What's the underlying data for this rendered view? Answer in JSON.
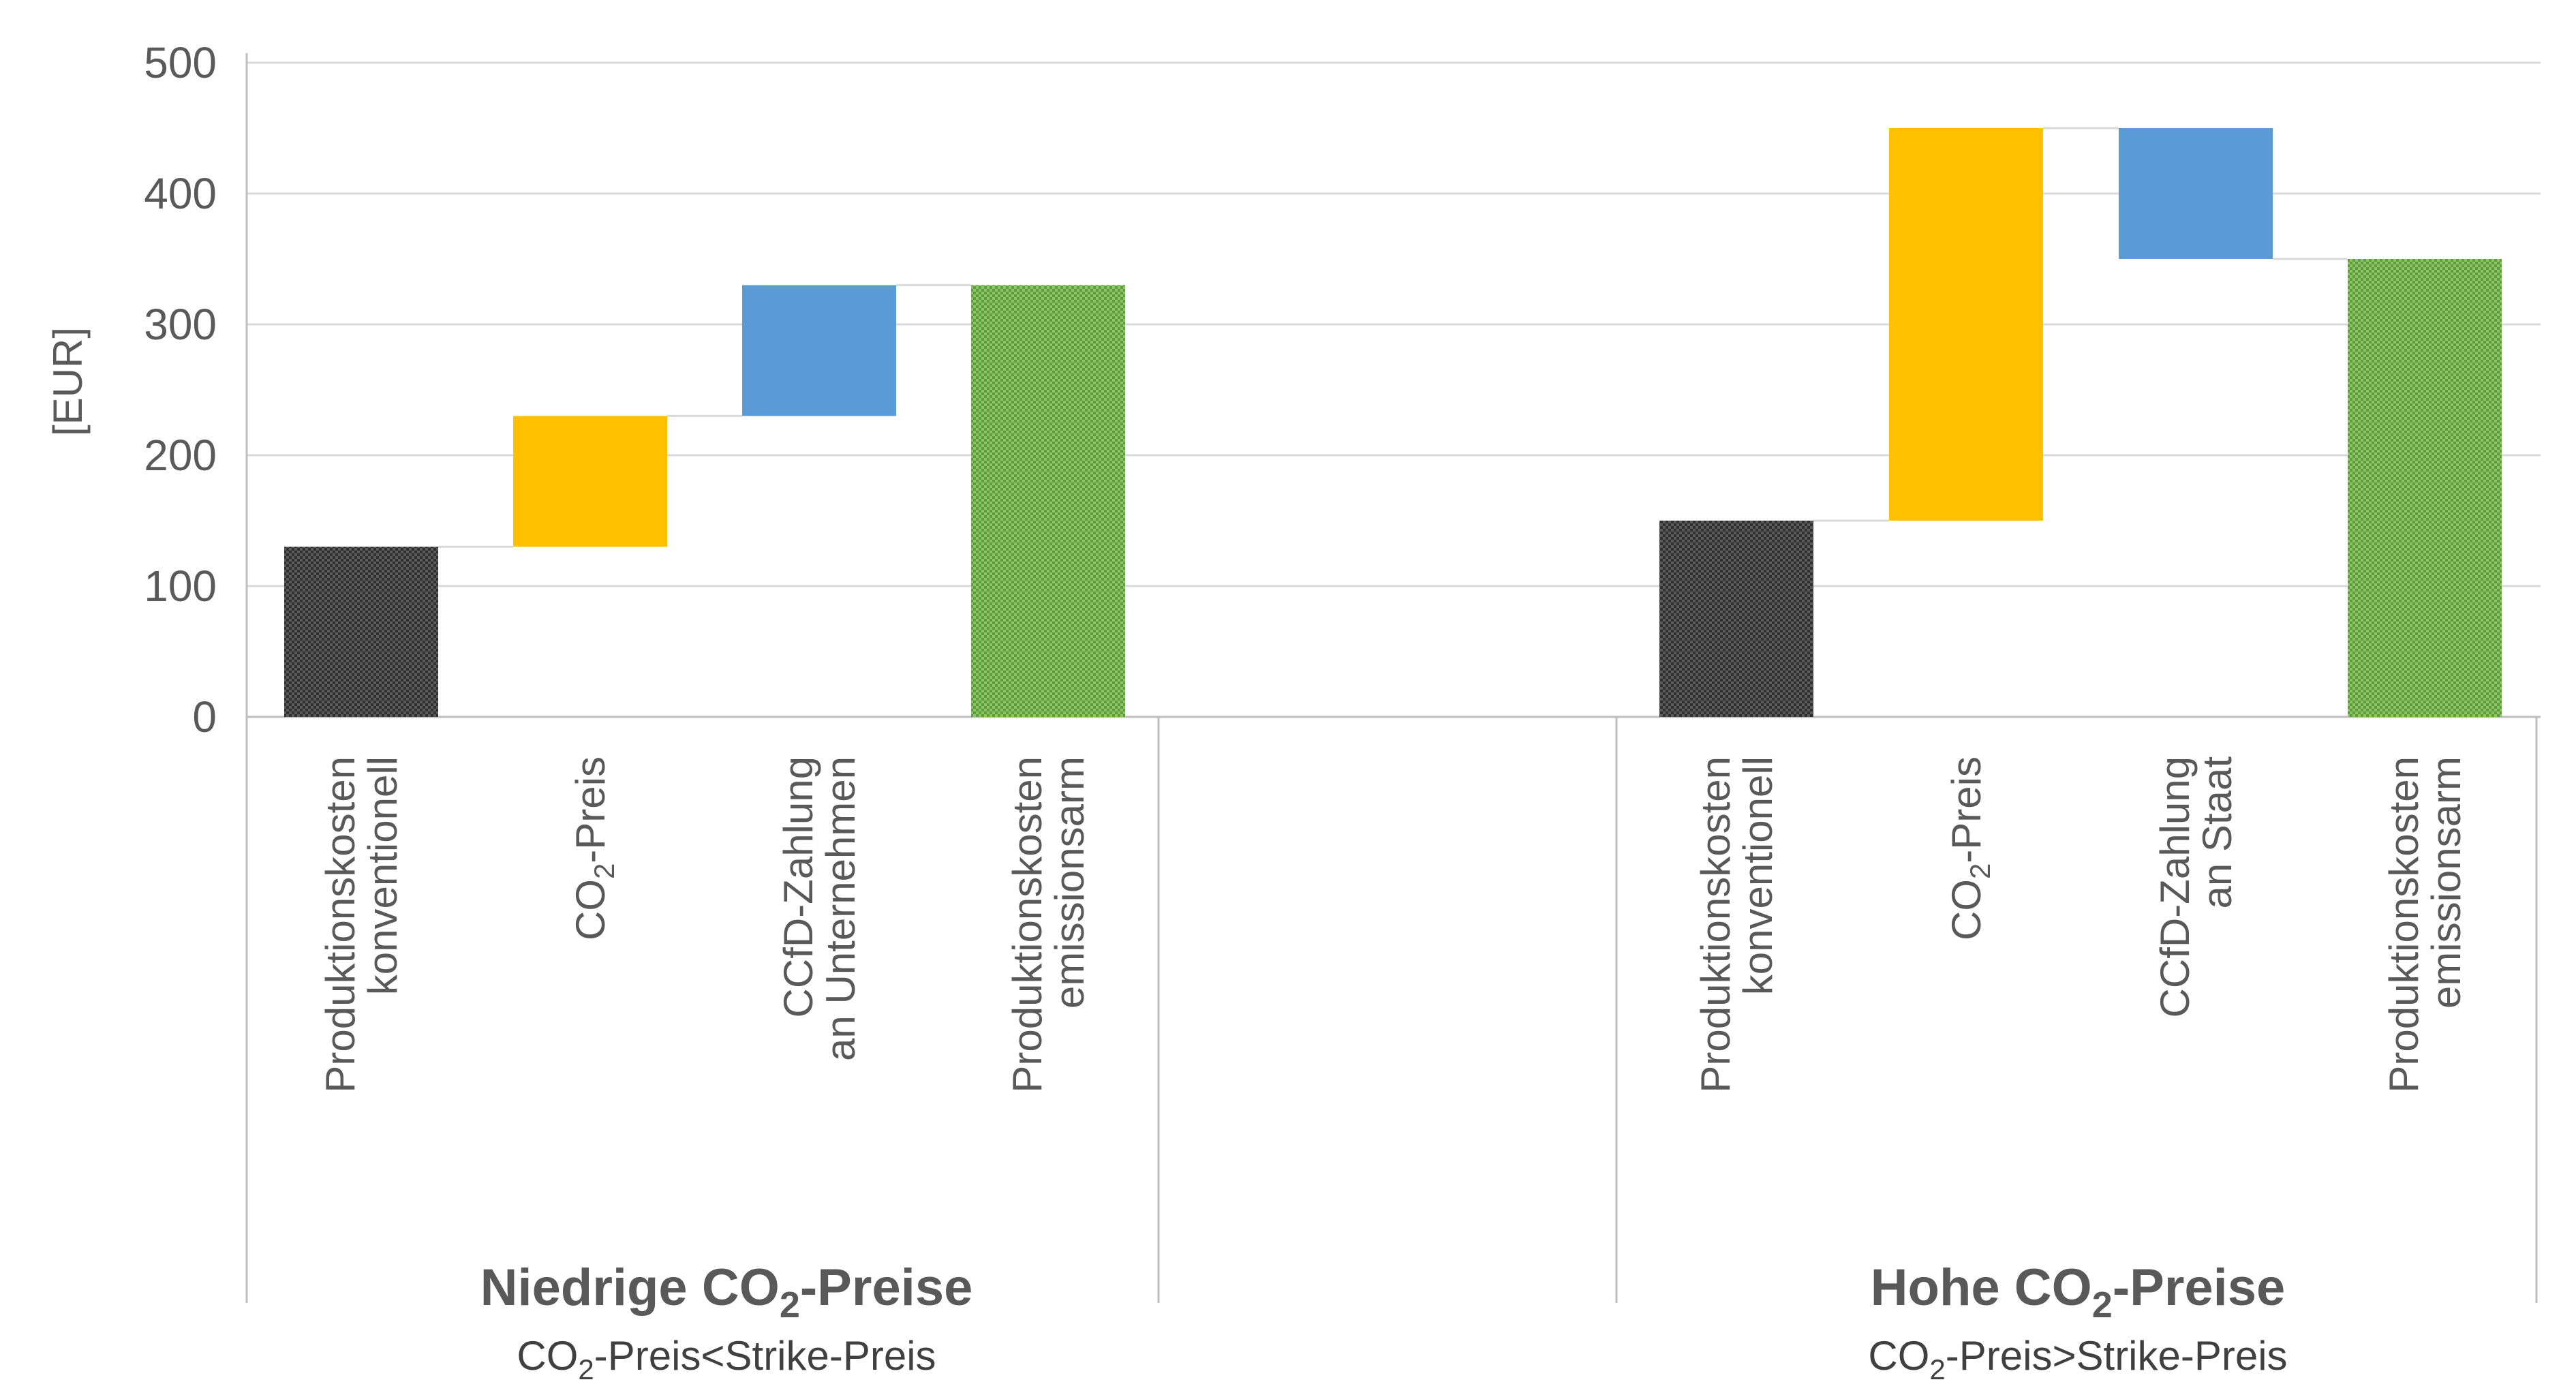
{
  "chart_data": {
    "type": "waterfall",
    "ylabel": "[EUR]",
    "ylim": [
      0,
      500
    ],
    "yticks": [
      0,
      100,
      200,
      300,
      400,
      500
    ],
    "grid": true,
    "colors": {
      "base": "#4d4d4d",
      "increase": "#FFC000",
      "ccfd": "#5B9BD5",
      "total": "#70AD47",
      "connector": "#d9d9d9",
      "grid": "#d9d9d9",
      "axis": "#bfbfbf"
    },
    "groups": [
      {
        "title": "Niedrige CO₂-Preise",
        "subtitle": "CO₂-Preis<Strike-Preis",
        "bars": [
          {
            "label_lines": [
              "Produktionskosten",
              "konventionell"
            ],
            "start": 0,
            "end": 130,
            "kind": "base"
          },
          {
            "label_lines": [
              "CO₂-Preis"
            ],
            "start": 130,
            "end": 230,
            "kind": "increase"
          },
          {
            "label_lines": [
              "CCfD-Zahlung",
              "an Unternehmen"
            ],
            "start": 230,
            "end": 330,
            "kind": "ccfd"
          },
          {
            "label_lines": [
              "Produktionskosten",
              "emissionsarm"
            ],
            "start": 0,
            "end": 330,
            "kind": "total"
          }
        ]
      },
      {
        "title": "Hohe CO₂-Preise",
        "subtitle": "CO₂-Preis>Strike-Preis",
        "bars": [
          {
            "label_lines": [
              "Produktionskosten",
              "konventionell"
            ],
            "start": 0,
            "end": 150,
            "kind": "base"
          },
          {
            "label_lines": [
              "CO₂-Preis"
            ],
            "start": 150,
            "end": 450,
            "kind": "increase"
          },
          {
            "label_lines": [
              "CCfD-Zahlung",
              "an Staat"
            ],
            "start": 450,
            "end": 350,
            "kind": "ccfd"
          },
          {
            "label_lines": [
              "Produktionskosten",
              "emissionsarm"
            ],
            "start": 0,
            "end": 350,
            "kind": "total"
          }
        ]
      }
    ]
  }
}
